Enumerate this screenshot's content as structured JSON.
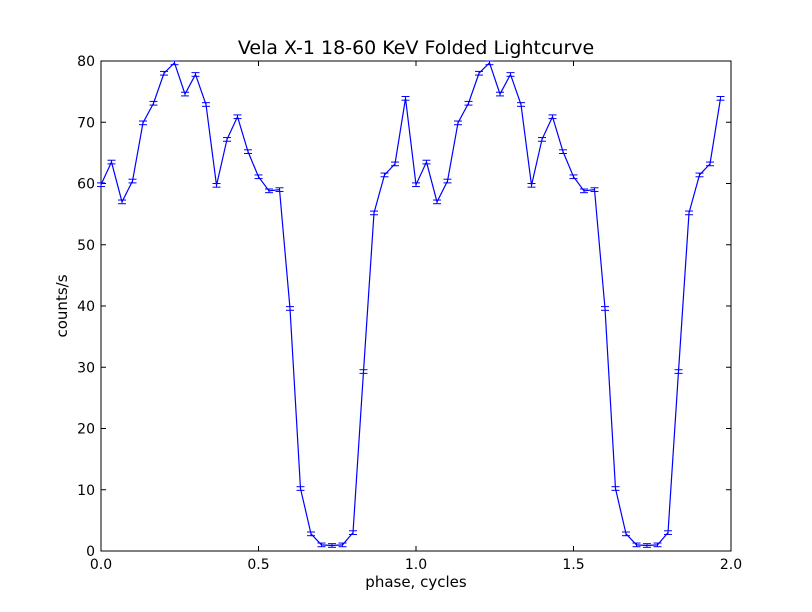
{
  "chart_data": {
    "type": "line",
    "title": "Vela X-1 18-60 KeV Folded Lightcurve",
    "xlabel": "phase, cycles",
    "ylabel": "counts/s",
    "xlim": [
      0.0,
      2.0
    ],
    "ylim": [
      0,
      80
    ],
    "xticks": [
      0.0,
      0.5,
      1.0,
      1.5,
      2.0
    ],
    "xtick_labels": [
      "0.0",
      "0.5",
      "1.0",
      "1.5",
      "2.0"
    ],
    "yticks": [
      0,
      10,
      20,
      30,
      40,
      50,
      60,
      70,
      80
    ],
    "ytick_labels": [
      "0",
      "10",
      "20",
      "30",
      "40",
      "50",
      "60",
      "70",
      "80"
    ],
    "grid": false,
    "line_color": "#0000ff",
    "series": [
      {
        "x": [
          0.0,
          0.0333,
          0.0667,
          0.1,
          0.1333,
          0.1667,
          0.2,
          0.2333,
          0.2667,
          0.3,
          0.3333,
          0.3667,
          0.4,
          0.4333,
          0.4667,
          0.5,
          0.5333,
          0.5667,
          0.6,
          0.6333,
          0.6667,
          0.7,
          0.7333,
          0.7667,
          0.8,
          0.8333,
          0.8667,
          0.9,
          0.9333,
          0.9667,
          1.0,
          1.0333,
          1.0667,
          1.1,
          1.1333,
          1.1667,
          1.2,
          1.2333,
          1.2667,
          1.3,
          1.3333,
          1.3667,
          1.4,
          1.4333,
          1.4667,
          1.5,
          1.5333,
          1.5667,
          1.6,
          1.6333,
          1.6667,
          1.7,
          1.7333,
          1.7667,
          1.8,
          1.8333,
          1.8667,
          1.9,
          1.9333,
          1.9667
        ],
        "y": [
          59.8,
          63.5,
          57.0,
          60.4,
          69.9,
          73.1,
          78.0,
          79.7,
          74.6,
          77.8,
          72.9,
          59.7,
          67.2,
          70.9,
          65.2,
          61.1,
          58.8,
          59.0,
          39.6,
          10.2,
          2.8,
          1.0,
          0.9,
          1.0,
          3.0,
          29.3,
          55.2,
          61.4,
          63.2,
          73.9,
          59.8,
          63.5,
          57.0,
          60.4,
          69.9,
          73.1,
          78.0,
          79.7,
          74.6,
          77.8,
          72.9,
          59.7,
          67.2,
          70.9,
          65.2,
          61.1,
          58.8,
          59.0,
          39.6,
          10.2,
          2.8,
          1.0,
          0.9,
          1.0,
          3.0,
          29.3,
          55.2,
          61.4,
          63.2,
          73.9
        ],
        "errors": 0.3
      }
    ]
  }
}
